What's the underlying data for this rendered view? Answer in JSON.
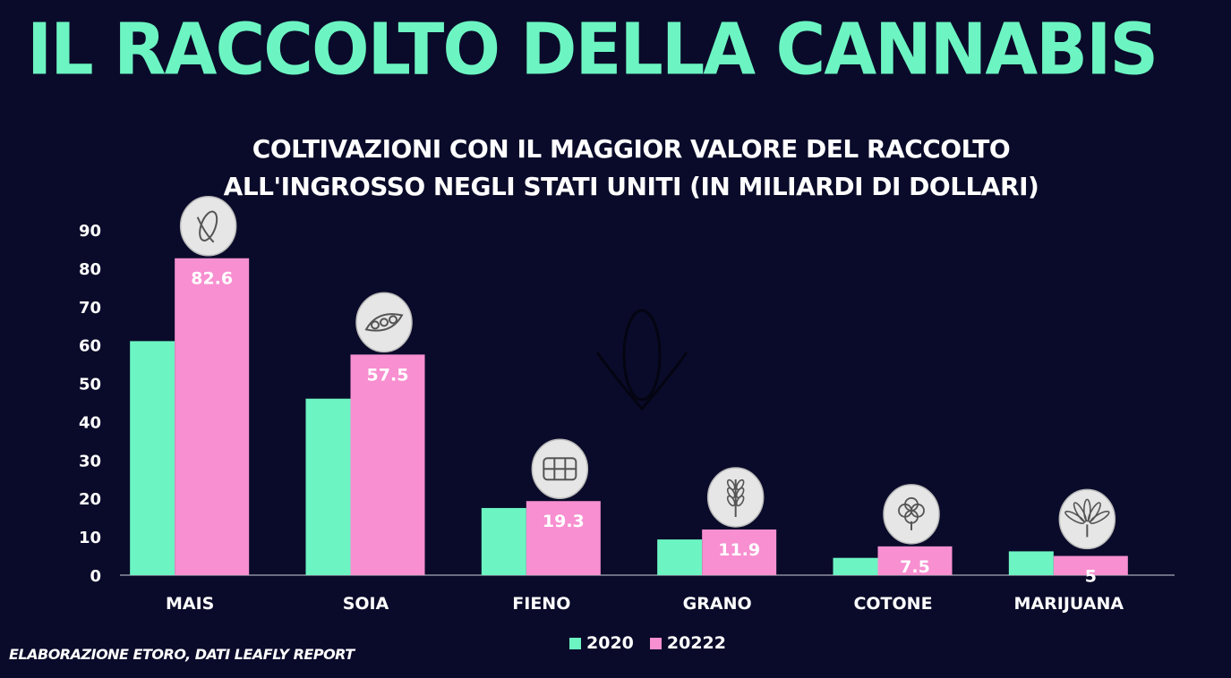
{
  "header": {
    "title": "IL RACCOLTO DELLA CANNABIS"
  },
  "source": "ELABORAZIONE ETORO, DATI LEAFLY REPORT",
  "chart_data": {
    "type": "bar",
    "title": "COLTIVAZIONI CON IL MAGGIOR VALORE DEL RACCOLTO ALL'INGROSSO NEGLI STATI UNITI (IN MILIARDI DI DOLLARI)",
    "xlabel": "",
    "ylabel": "",
    "ylim": [
      0,
      90
    ],
    "yticks": [
      "0",
      "10",
      "20",
      "30",
      "40",
      "50",
      "60",
      "70",
      "80",
      "90"
    ],
    "categories": [
      "MAIS",
      "SOIA",
      "FIENO",
      "GRANO",
      "COTONE",
      "MARIJUANA"
    ],
    "icons": [
      "corn-icon",
      "soybean-icon",
      "hay-bale-icon",
      "wheat-icon",
      "cotton-icon",
      "cannabis-leaf-icon"
    ],
    "series": [
      {
        "name": "2020",
        "color": "#6cf5c2",
        "values": [
          61,
          46,
          17.5,
          9.3,
          4.5,
          6.2
        ]
      },
      {
        "name": "20222",
        "color": "#f78fd0",
        "values": [
          82.6,
          57.5,
          19.3,
          11.9,
          7.5,
          5
        ],
        "labels": [
          "82.6",
          "57.5",
          "19.3",
          "11.9",
          "7.5",
          "5"
        ]
      }
    ],
    "grid": false,
    "legend": "bottom-center"
  }
}
